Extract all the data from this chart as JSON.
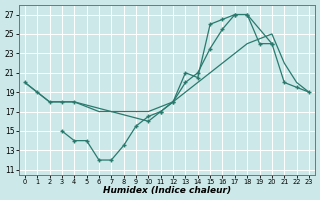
{
  "xlabel": "Humidex (Indice chaleur)",
  "bg_color": "#cce8e8",
  "grid_color": "#ffffff",
  "line_color": "#2a7a6e",
  "xlim": [
    -0.5,
    23.5
  ],
  "ylim": [
    10.5,
    28.0
  ],
  "xticks": [
    0,
    1,
    2,
    3,
    4,
    5,
    6,
    7,
    8,
    9,
    10,
    11,
    12,
    13,
    14,
    15,
    16,
    17,
    18,
    19,
    20,
    21,
    22,
    23
  ],
  "yticks": [
    11,
    13,
    15,
    17,
    19,
    21,
    23,
    25,
    27
  ],
  "curveA_x": [
    0,
    1,
    2,
    3,
    4,
    5,
    6,
    7,
    8,
    9,
    10,
    11,
    12,
    13,
    14,
    15,
    16,
    17,
    18,
    19,
    20,
    21,
    22,
    23
  ],
  "curveA_y": [
    20,
    19,
    18,
    18,
    18,
    17.5,
    17,
    17,
    17,
    17,
    17,
    17.5,
    18,
    19,
    20,
    21,
    22,
    23,
    24,
    24.5,
    25,
    22,
    20,
    19
  ],
  "curveB_x": [
    0,
    1,
    2,
    3,
    4,
    10,
    11,
    12,
    13,
    14,
    15,
    16,
    17,
    18,
    20,
    21,
    22,
    23
  ],
  "curveB_y": [
    20,
    19,
    18,
    18,
    18,
    16,
    17,
    18,
    20,
    21,
    23.5,
    25.5,
    27,
    27,
    24,
    20,
    19.5,
    19
  ],
  "curveC_x": [
    3,
    4,
    5,
    6,
    7,
    8,
    9,
    10,
    11,
    12,
    13,
    14,
    15,
    16,
    17,
    18,
    19,
    20
  ],
  "curveC_y": [
    15,
    14,
    14,
    12,
    12,
    13.5,
    15.5,
    16.5,
    17,
    18,
    21,
    20.5,
    26,
    26.5,
    27,
    27,
    24,
    24
  ]
}
